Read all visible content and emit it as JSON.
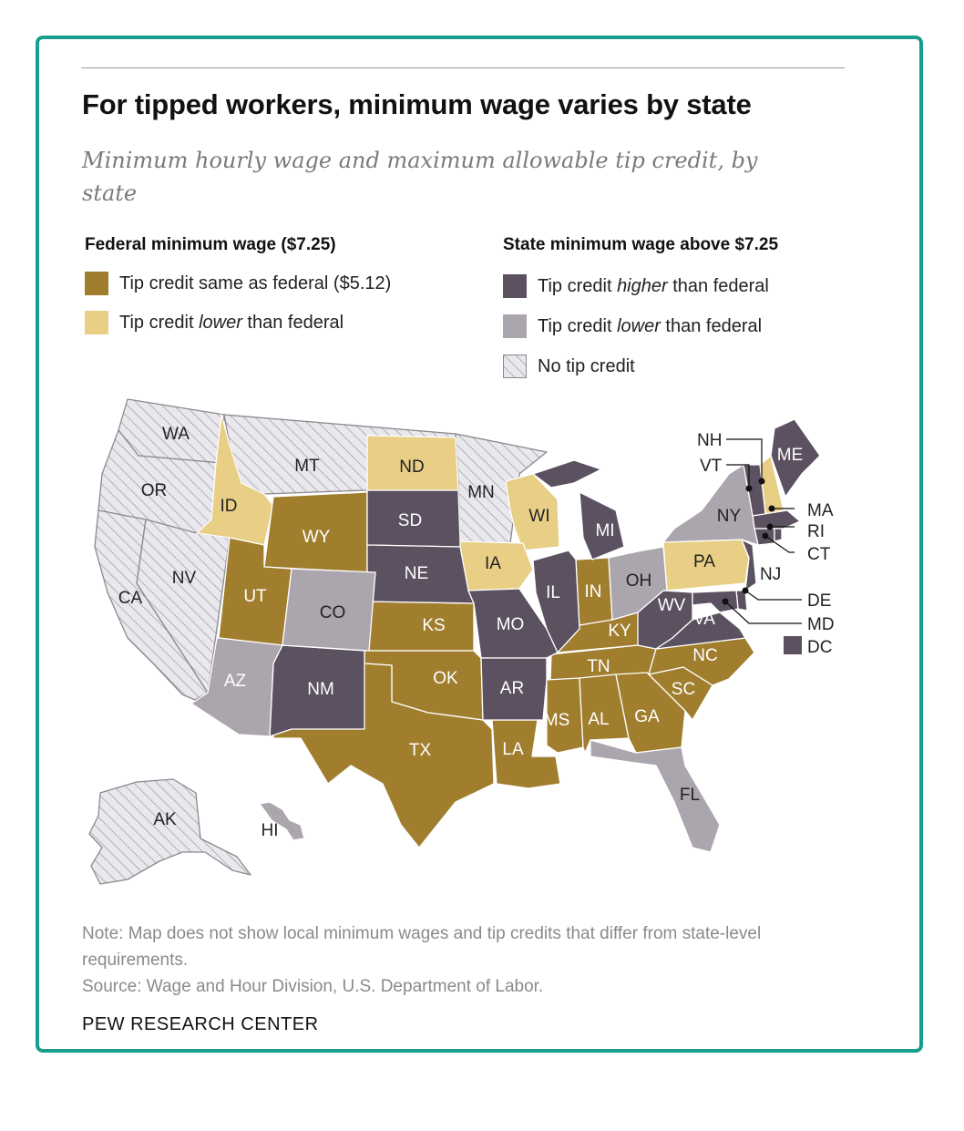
{
  "title": "For tipped workers, minimum wage varies by state",
  "subtitle": "Minimum hourly wage and maximum allowable tip credit, by state",
  "legend": {
    "federal": {
      "heading": "Federal minimum wage ($7.25)",
      "same": "Tip credit same as federal ($5.12)",
      "lower_pre": "Tip credit ",
      "lower_em": "lower",
      "lower_post": " than federal"
    },
    "state": {
      "heading": "State minimum wage above $7.25",
      "higher_pre": "Tip credit ",
      "higher_em": "higher",
      "higher_post": " than federal",
      "lower_pre": "Tip credit ",
      "lower_em": "lower",
      "lower_post": " than federal",
      "none": "No tip credit"
    }
  },
  "colors": {
    "federal_same": "#a07e2e",
    "federal_lower": "#e8cf85",
    "state_higher": "#5b5160",
    "state_lower": "#aba5ae",
    "no_credit": "#e7e6ea",
    "border": "#1a9e8c"
  },
  "states": {
    "WA": "WA",
    "OR": "OR",
    "CA": "CA",
    "NV": "NV",
    "ID": "ID",
    "MT": "MT",
    "WY": "WY",
    "UT": "UT",
    "AZ": "AZ",
    "CO": "CO",
    "NM": "NM",
    "ND": "ND",
    "SD": "SD",
    "NE": "NE",
    "KS": "KS",
    "OK": "OK",
    "TX": "TX",
    "MN": "MN",
    "IA": "IA",
    "MO": "MO",
    "AR": "AR",
    "LA": "LA",
    "WI": "WI",
    "IL": "IL",
    "MI": "MI",
    "IN": "IN",
    "OH": "OH",
    "KY": "KY",
    "TN": "TN",
    "MS": "MS",
    "AL": "AL",
    "GA": "GA",
    "FL": "FL",
    "SC": "SC",
    "NC": "NC",
    "VA": "VA",
    "WV": "WV",
    "PA": "PA",
    "NY": "NY",
    "ME": "ME",
    "NH": "NH",
    "VT": "VT",
    "MA": "MA",
    "RI": "RI",
    "CT": "CT",
    "NJ": "NJ",
    "DE": "DE",
    "MD": "MD",
    "DC": "DC",
    "AK": "AK",
    "HI": "HI"
  },
  "note": "Note: Map does not show local minimum wages and tip credits that differ from state-level requirements.",
  "source": "Source: Wage and Hour Division, U.S. Department of Labor.",
  "brand": "PEW RESEARCH CENTER"
}
